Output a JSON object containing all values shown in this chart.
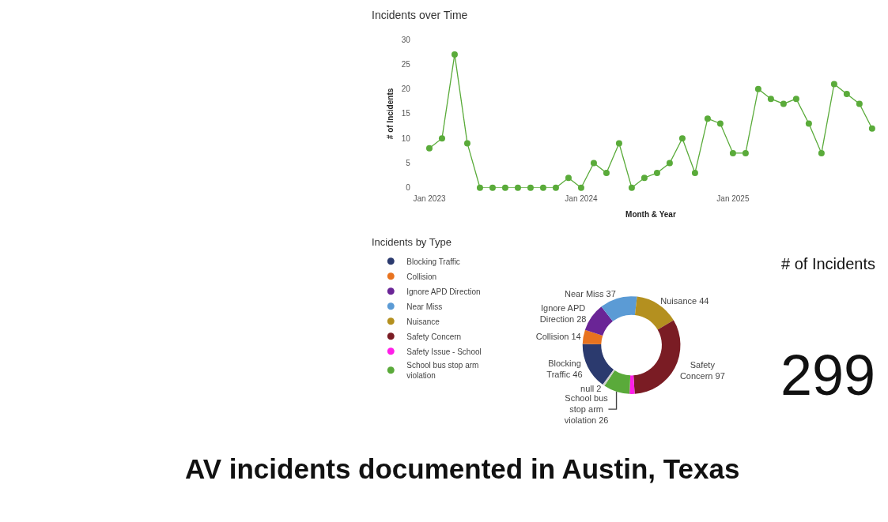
{
  "chart_data": [
    {
      "type": "line",
      "title": "Incidents over Time",
      "xlabel": "Month & Year",
      "ylabel": "# of Incidents",
      "categories": [
        "Jan 2023",
        null,
        null,
        null,
        null,
        null,
        null,
        null,
        null,
        null,
        null,
        null,
        "Jan 2024",
        null,
        null,
        null,
        null,
        null,
        null,
        null,
        null,
        null,
        null,
        null,
        "Jan 2025",
        null,
        null,
        null,
        null,
        null,
        null,
        null,
        null,
        null,
        null,
        null
      ],
      "series": [
        {
          "color": "#5aab3a",
          "values": [
            8,
            10,
            27,
            9,
            0,
            0,
            0,
            0,
            0,
            0,
            0,
            2,
            0,
            5,
            3,
            9,
            0,
            2,
            3,
            5,
            10,
            3,
            14,
            13,
            7,
            7,
            20,
            18,
            17,
            18,
            13,
            7,
            21,
            19,
            17,
            12
          ]
        }
      ],
      "ylim": [
        0,
        30
      ],
      "yticks": [
        0,
        5,
        10,
        15,
        20,
        25,
        30
      ],
      "grid": false,
      "legend": false,
      "marker": "circle",
      "line_style": "solid"
    },
    {
      "type": "donut",
      "title": "Incidents by Type",
      "categories": [
        "Blocking Traffic",
        "Collision",
        "Ignore APD Direction",
        "Near Miss",
        "Nuisance",
        "Safety Concern",
        "Safety Issue - School",
        "School bus stop arm violation",
        null
      ],
      "values": [
        46,
        14,
        28,
        37,
        44,
        97,
        5,
        26,
        2
      ],
      "colors": [
        "#2b3a6e",
        "#e8731f",
        "#6a2596",
        "#5b9bd5",
        "#b4901f",
        "#7a1c24",
        "#ff1ee8",
        "#5aaa3a",
        "#cfcfcf"
      ],
      "value_labels": [
        "Blocking Traffic 46",
        "Collision 14",
        "Ignore APD Direction 28",
        "Near Miss 37",
        "Nuisance 44",
        "Safety Concern 97",
        null,
        "School bus stop arm violation 26",
        "null 2"
      ],
      "legend": "left"
    },
    {
      "type": "other",
      "title": "# of Incidents",
      "annotations": [
        "299"
      ]
    },
    {
      "type": "other",
      "title": "AV incidents documented in Austin, Texas"
    }
  ]
}
